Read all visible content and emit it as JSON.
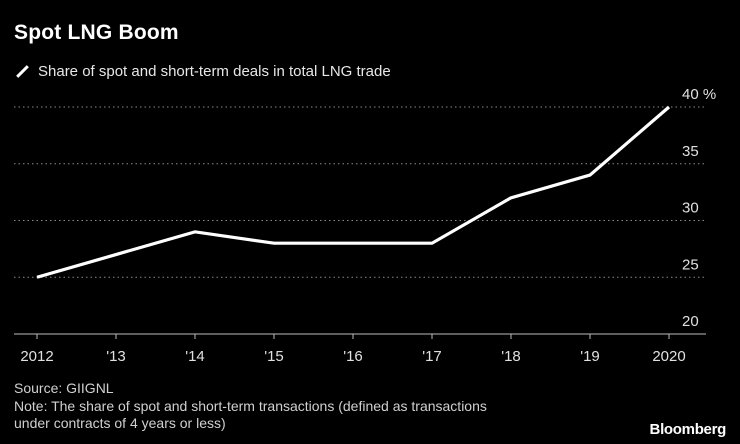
{
  "title": "Spot LNG Boom",
  "footer": {
    "source": "Source: GIIGNL",
    "note_line1": "Note: The share of spot and short-term transactions (defined as transactions",
    "note_line2": "under contracts of 4 years or less)"
  },
  "brand": "Bloomberg",
  "colors": {
    "background": "#000000",
    "line": "#ffffff",
    "grid": "#8a8a8a",
    "text": "#e0e0e0"
  },
  "chart_data": {
    "type": "line",
    "x": [
      "2012",
      "'13",
      "'14",
      "'15",
      "'16",
      "'17",
      "'18",
      "'19",
      "2020"
    ],
    "series": [
      {
        "name": "Share of spot and short-term deals in total LNG trade",
        "values": [
          25,
          27,
          29,
          28,
          28,
          28,
          32,
          34,
          40
        ]
      }
    ],
    "yticks": [
      20,
      25,
      30,
      35,
      40
    ],
    "ytick_labels": [
      "20",
      "25",
      "30",
      "35",
      "40 %"
    ],
    "ylim": [
      20,
      40
    ],
    "y_axis_side": "right",
    "grid": "horizontal dotted",
    "legend_position": "top-left"
  }
}
